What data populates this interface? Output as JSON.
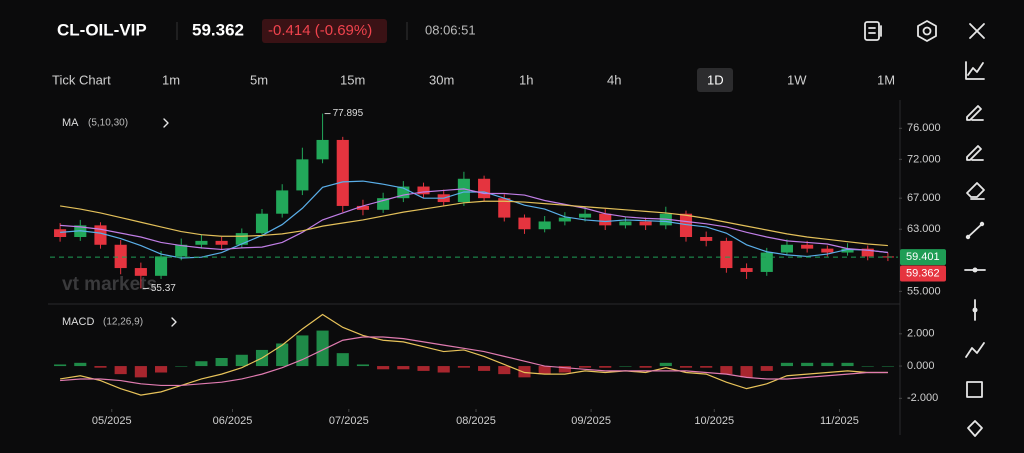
{
  "header": {
    "symbol": "CL-OIL-VIP",
    "price": "59.362",
    "change": "-0.414 (-0.69%)",
    "time": "08:06:51"
  },
  "timeframes": {
    "items": [
      "Tick Chart",
      "1m",
      "5m",
      "15m",
      "30m",
      "1h",
      "4h",
      "1D",
      "1W",
      "1M"
    ],
    "selected": 7
  },
  "watermark": "vt markets",
  "chart_data": [
    {
      "type": "candlestick",
      "indicator": "MA",
      "params": "(5,10,30)",
      "x": [
        0,
        1,
        2,
        3,
        4,
        5,
        6,
        7,
        8,
        9,
        10,
        11,
        12,
        13,
        14,
        15,
        16,
        17,
        18,
        19,
        20,
        21,
        22,
        23,
        24,
        25,
        26,
        27,
        28,
        29,
        30,
        31,
        32,
        33,
        34,
        35,
        36,
        37,
        38,
        39,
        40,
        41
      ],
      "xlim": [
        -0.5,
        41.5
      ],
      "xticks": [
        {
          "value": 2.56,
          "label": "05/2025"
        },
        {
          "value": 8.54,
          "label": "06/2025"
        },
        {
          "value": 14.3,
          "label": "07/2025"
        },
        {
          "value": 20.6,
          "label": "08/2025"
        },
        {
          "value": 26.3,
          "label": "09/2025"
        },
        {
          "value": 32.4,
          "label": "10/2025"
        },
        {
          "value": 38.6,
          "label": "11/2025"
        }
      ],
      "open": [
        63.0,
        62.0,
        63.5,
        61.0,
        58.0,
        57.0,
        59.5,
        61.0,
        61.5,
        61.0,
        62.5,
        65.0,
        68.0,
        72.0,
        74.5,
        66.0,
        65.5,
        67.0,
        68.5,
        67.5,
        66.5,
        69.5,
        67.0,
        64.5,
        63.0,
        64.0,
        64.5,
        65.0,
        63.5,
        64.0,
        63.5,
        65.0,
        62.0,
        61.5,
        58.0,
        57.5,
        60.0,
        61.0,
        60.5,
        60.0,
        60.5,
        59.5
      ],
      "high": [
        63.8,
        64.2,
        63.9,
        61.6,
        58.7,
        60.2,
        61.8,
        62.3,
        62.0,
        63.1,
        65.6,
        68.8,
        73.5,
        77.895,
        74.9,
        66.8,
        67.7,
        69.2,
        69.0,
        68.1,
        70.4,
        69.9,
        67.5,
        64.9,
        64.7,
        65.2,
        65.9,
        65.6,
        64.6,
        64.5,
        65.9,
        65.4,
        62.7,
        61.9,
        58.6,
        60.6,
        61.7,
        61.5,
        60.9,
        61.2,
        60.9,
        60.0
      ],
      "low": [
        61.4,
        61.5,
        60.5,
        57.2,
        55.37,
        56.6,
        59.0,
        60.5,
        60.3,
        60.6,
        62.0,
        64.5,
        67.4,
        71.5,
        65.2,
        64.8,
        65.1,
        66.5,
        67.0,
        66.0,
        66.0,
        66.6,
        64.0,
        62.4,
        62.6,
        63.5,
        64.0,
        62.9,
        63.1,
        62.9,
        63.0,
        61.4,
        60.8,
        57.4,
        56.6,
        57.0,
        59.6,
        60.0,
        59.5,
        59.6,
        59.0,
        58.9
      ],
      "close": [
        62.0,
        63.5,
        61.0,
        58.0,
        57.0,
        59.5,
        61.0,
        61.5,
        61.0,
        62.5,
        65.0,
        68.0,
        72.0,
        74.5,
        66.0,
        65.5,
        67.0,
        68.5,
        67.5,
        66.5,
        69.5,
        67.0,
        64.5,
        63.0,
        64.0,
        64.5,
        65.0,
        63.5,
        64.0,
        63.5,
        65.0,
        62.0,
        61.5,
        58.0,
        57.5,
        60.0,
        61.0,
        60.5,
        60.0,
        60.5,
        59.5,
        59.362
      ],
      "up_color": "#22a85a",
      "down_color": "#e5343f",
      "series": [
        {
          "color": "#5aaee8",
          "values": [
            62.6,
            62.8,
            62.5,
            61.8,
            60.9,
            59.8,
            59.3,
            59.4,
            60.0,
            61.1,
            62.2,
            63.6,
            65.7,
            68.4,
            69.1,
            69.2,
            68.8,
            68.3,
            67.0,
            67.0,
            67.8,
            67.8,
            67.0,
            66.1,
            65.6,
            64.6,
            64.2,
            64.0,
            64.2,
            64.1,
            64.0,
            63.6,
            63.3,
            62.5,
            61.0,
            60.1,
            59.7,
            59.5,
            59.8,
            60.4,
            60.3,
            60.0
          ]
        },
        {
          "color": "#c07ee6",
          "values": [
            63.5,
            63.3,
            63.0,
            62.5,
            62.0,
            61.3,
            60.9,
            60.6,
            60.4,
            60.6,
            60.7,
            61.3,
            62.6,
            64.2,
            65.1,
            66.0,
            66.7,
            67.4,
            67.8,
            68.0,
            68.2,
            67.6,
            67.6,
            67.4,
            66.7,
            66.2,
            65.7,
            65.0,
            64.6,
            64.4,
            64.3,
            64.0,
            63.7,
            63.3,
            62.6,
            62.0,
            61.5,
            61.3,
            61.1,
            60.5,
            60.3,
            60.0
          ]
        },
        {
          "color": "#e3c05a",
          "values": [
            66.0,
            65.6,
            65.1,
            64.5,
            63.9,
            63.3,
            62.7,
            62.3,
            62.1,
            62.1,
            62.2,
            62.4,
            62.8,
            63.4,
            63.8,
            64.2,
            64.7,
            65.2,
            65.6,
            66.0,
            66.4,
            66.6,
            66.6,
            66.5,
            66.3,
            66.1,
            65.9,
            65.7,
            65.5,
            65.3,
            65.1,
            64.8,
            64.4,
            63.9,
            63.4,
            62.9,
            62.4,
            62.0,
            61.7,
            61.4,
            61.1,
            60.9
          ]
        }
      ],
      "ylim": [
        53.5,
        79
      ],
      "yticks": [
        {
          "value": 76,
          "label": "76.000"
        },
        {
          "value": 72,
          "label": "72.000"
        },
        {
          "value": 67,
          "label": "67.000"
        },
        {
          "value": 63,
          "label": "63.000"
        },
        {
          "value": 55,
          "label": "55.000"
        }
      ],
      "annotations": [
        {
          "index": 13,
          "value": 77.895
        },
        {
          "index": 4,
          "value": 55.37
        }
      ],
      "price_labels": [
        {
          "value": 59.401,
          "color": "#1f9d55",
          "dashed": true
        },
        {
          "value": 59.362,
          "color": "#e5343f"
        }
      ]
    },
    {
      "type": "macd",
      "indicator": "MACD",
      "params": "(12,26,9)",
      "histogram": {
        "up_color": "#1f8a48",
        "down_color": "#a8262e",
        "values": [
          0.1,
          0.2,
          -0.1,
          -0.5,
          -0.7,
          -0.4,
          0.0,
          0.3,
          0.5,
          0.7,
          1.0,
          1.4,
          1.9,
          2.2,
          0.8,
          0.1,
          -0.2,
          -0.2,
          -0.3,
          -0.4,
          -0.1,
          -0.3,
          -0.5,
          -0.7,
          -0.5,
          -0.4,
          -0.1,
          -0.1,
          0.0,
          -0.1,
          0.2,
          -0.1,
          -0.1,
          -0.5,
          -0.7,
          -0.3,
          0.2,
          0.2,
          0.2,
          0.2,
          0.0,
          0.0
        ]
      },
      "series": [
        {
          "color": "#e8c35a",
          "values": [
            -0.8,
            -0.6,
            -0.9,
            -1.4,
            -1.8,
            -1.6,
            -1.2,
            -0.8,
            -0.5,
            -0.1,
            0.5,
            1.3,
            2.3,
            3.2,
            2.4,
            1.9,
            1.6,
            1.5,
            1.2,
            0.9,
            1.0,
            0.6,
            0.1,
            -0.4,
            -0.5,
            -0.5,
            -0.3,
            -0.4,
            -0.3,
            -0.4,
            -0.1,
            -0.4,
            -0.5,
            -1.0,
            -1.4,
            -1.1,
            -0.6,
            -0.5,
            -0.4,
            -0.3,
            -0.4,
            -0.4
          ]
        },
        {
          "color": "#e07bb0",
          "values": [
            -0.9,
            -0.8,
            -0.8,
            -0.9,
            -1.1,
            -1.2,
            -1.2,
            -1.1,
            -1.0,
            -0.8,
            -0.5,
            -0.1,
            0.4,
            1.0,
            1.6,
            1.8,
            1.8,
            1.7,
            1.5,
            1.3,
            1.1,
            0.9,
            0.6,
            0.3,
            0.0,
            -0.1,
            -0.2,
            -0.3,
            -0.3,
            -0.3,
            -0.3,
            -0.3,
            -0.4,
            -0.5,
            -0.7,
            -0.8,
            -0.8,
            -0.7,
            -0.6,
            -0.5,
            -0.4,
            -0.4
          ]
        }
      ],
      "ylim": [
        -2.6,
        3.6
      ],
      "yticks": [
        {
          "value": 2,
          "label": "2.000"
        },
        {
          "value": 0,
          "label": "0.000"
        },
        {
          "value": -2,
          "label": "-2.000"
        }
      ]
    }
  ]
}
